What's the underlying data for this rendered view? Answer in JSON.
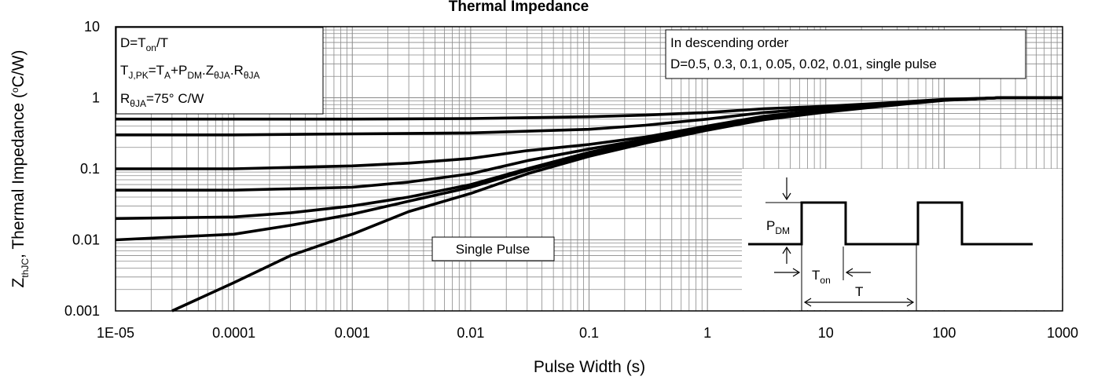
{
  "chart_data": {
    "type": "line",
    "title": "Thermal Impedance",
    "xlabel": "Pulse Width (s)",
    "ylabel": {
      "symbol": "Z",
      "symbol_sub": "thJC",
      "text": ", Thermal Impedance (",
      "degree": "o",
      "unit": "C/W)"
    },
    "x_scale": "log",
    "y_scale": "log",
    "xlim": [
      1e-05,
      1000
    ],
    "ylim": [
      0.001,
      10
    ],
    "grid": true,
    "x_ticks": [
      "1E-05",
      "0.0001",
      "0.001",
      "0.01",
      "0.1",
      "1",
      "10",
      "100",
      "1000"
    ],
    "y_ticks": [
      "0.001",
      "0.01",
      "0.1",
      "1",
      "10"
    ],
    "series": [
      {
        "name": "D=0.5",
        "x": [
          1e-05,
          0.0001,
          0.001,
          0.01,
          0.1,
          0.3,
          1,
          3,
          10,
          30,
          100,
          300,
          1000
        ],
        "y": [
          0.5,
          0.5,
          0.5,
          0.51,
          0.54,
          0.57,
          0.62,
          0.7,
          0.76,
          0.84,
          0.95,
          1.0,
          1.0
        ]
      },
      {
        "name": "D=0.3",
        "x": [
          1e-05,
          0.0001,
          0.001,
          0.01,
          0.1,
          0.3,
          1,
          3,
          10,
          30,
          100,
          300,
          1000
        ],
        "y": [
          0.3,
          0.3,
          0.31,
          0.32,
          0.36,
          0.41,
          0.5,
          0.62,
          0.72,
          0.82,
          0.93,
          1.0,
          1.0
        ]
      },
      {
        "name": "D=0.1",
        "x": [
          1e-05,
          0.0001,
          0.001,
          0.003,
          0.01,
          0.03,
          0.1,
          0.3,
          1,
          3,
          10,
          30,
          100,
          300,
          1000
        ],
        "y": [
          0.1,
          0.1,
          0.11,
          0.12,
          0.14,
          0.18,
          0.22,
          0.28,
          0.4,
          0.55,
          0.68,
          0.8,
          0.93,
          1.0,
          1.0
        ]
      },
      {
        "name": "D=0.05",
        "x": [
          1e-05,
          0.0001,
          0.001,
          0.003,
          0.01,
          0.03,
          0.1,
          0.3,
          1,
          3,
          10,
          30,
          100,
          300,
          1000
        ],
        "y": [
          0.05,
          0.05,
          0.055,
          0.065,
          0.085,
          0.13,
          0.19,
          0.26,
          0.38,
          0.52,
          0.66,
          0.79,
          0.93,
          1.0,
          1.0
        ]
      },
      {
        "name": "D=0.02",
        "x": [
          1e-05,
          0.0001,
          0.0003,
          0.001,
          0.003,
          0.01,
          0.03,
          0.1,
          0.3,
          1,
          3,
          10,
          30,
          100,
          300,
          1000
        ],
        "y": [
          0.02,
          0.021,
          0.024,
          0.03,
          0.04,
          0.06,
          0.1,
          0.17,
          0.25,
          0.37,
          0.51,
          0.65,
          0.78,
          0.93,
          1.0,
          1.0
        ]
      },
      {
        "name": "D=0.01",
        "x": [
          1e-05,
          0.0001,
          0.0003,
          0.001,
          0.003,
          0.01,
          0.03,
          0.1,
          0.3,
          1,
          3,
          10,
          30,
          100,
          300,
          1000
        ],
        "y": [
          0.01,
          0.012,
          0.016,
          0.023,
          0.035,
          0.055,
          0.095,
          0.16,
          0.24,
          0.36,
          0.5,
          0.64,
          0.77,
          0.93,
          1.0,
          1.0
        ]
      },
      {
        "name": "single pulse",
        "x": [
          3e-05,
          0.0001,
          0.0003,
          0.001,
          0.003,
          0.01,
          0.03,
          0.1,
          0.3,
          1,
          3,
          10,
          30,
          100,
          300,
          1000
        ],
        "y": [
          0.001,
          0.0025,
          0.006,
          0.012,
          0.025,
          0.045,
          0.085,
          0.15,
          0.23,
          0.35,
          0.49,
          0.63,
          0.76,
          0.92,
          1.0,
          1.0
        ]
      }
    ],
    "annotations": {
      "formula_box": {
        "line1": {
          "a": "D=T",
          "a_sub": "on",
          "b": "/T"
        },
        "line2": {
          "a": "T",
          "a_sub": "J,PK",
          "b": "=T",
          "b_sub": "A",
          "c": "+P",
          "c_sub": "DM",
          "d": ".Z",
          "d_sub": "θJA",
          "e": ".R",
          "e_sub": "θJA"
        },
        "line3": {
          "a": "R",
          "a_sub": "θJA",
          "b": "=75°  C/W"
        }
      },
      "order_box": {
        "line1": "In descending order",
        "line2": "D=0.5, 0.3, 0.1, 0.05, 0.02, 0.01, single pulse"
      },
      "single_pulse_label": "Single Pulse",
      "waveform": {
        "pdm": "P",
        "pdm_sub": "DM",
        "ton": "T",
        "ton_sub": "on",
        "period": "T"
      }
    }
  }
}
